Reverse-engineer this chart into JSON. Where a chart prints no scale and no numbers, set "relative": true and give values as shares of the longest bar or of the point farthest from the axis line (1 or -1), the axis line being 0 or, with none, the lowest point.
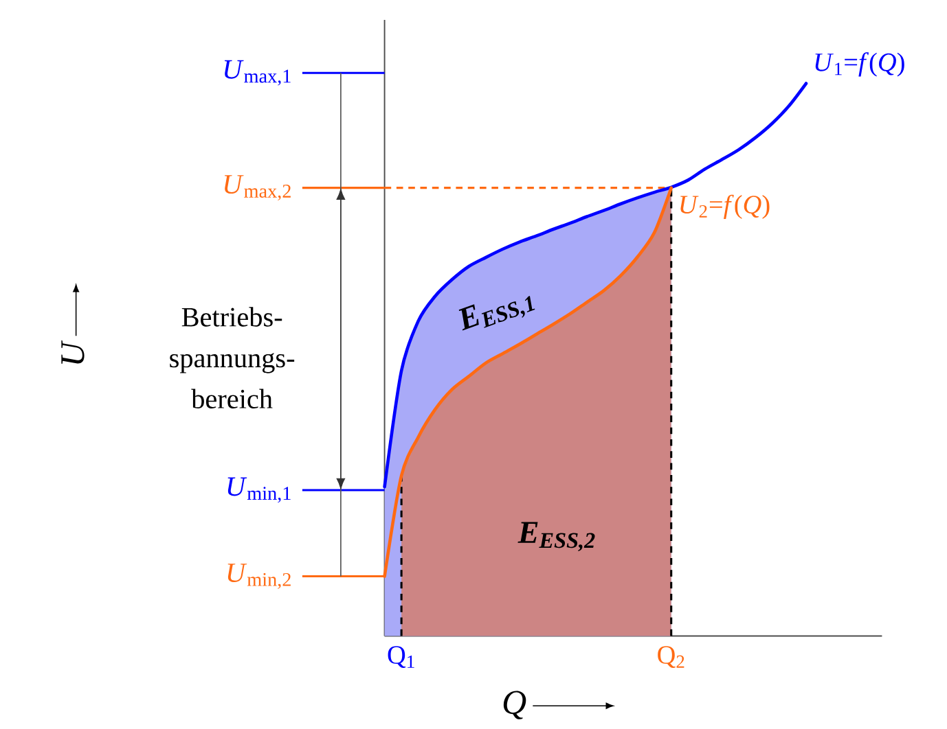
{
  "chart_data": {
    "type": "line",
    "relative": true,
    "xlabel": "Q",
    "categories": [
      null,
      "Q$_{1}$",
      null,
      null,
      null,
      null,
      null,
      null,
      null,
      null,
      null,
      null,
      null,
      null,
      null,
      null,
      null,
      "Q$_{2}$",
      null,
      null,
      null,
      null,
      null,
      null,
      null,
      null
    ],
    "series": [
      {
        "type": "area",
        "color": "#a9aaf8",
        "values": [
          0.27,
          0.48,
          0.57,
          0.615,
          0.645,
          0.669,
          0.685,
          0.7,
          0.713,
          0.724,
          0.736,
          0.747,
          0.759,
          0.77,
          0.782,
          0.793,
          0.803,
          0.812,
          null,
          null,
          null,
          null,
          null,
          null,
          null,
          null
        ]
      },
      {
        "type": "area",
        "color": "#cd8584",
        "values": [
          null,
          0.29,
          0.36,
          0.41,
          0.446,
          0.47,
          0.494,
          0.511,
          0.528,
          0.546,
          0.564,
          0.583,
          0.604,
          0.625,
          0.652,
          0.686,
          0.73,
          0.811,
          null,
          null,
          null,
          null,
          null,
          null,
          null,
          null
        ]
      },
      {
        "name": "*U*$_{1}$=*f*(*Q*)",
        "color": "#0000ff",
        "values": [
          0.27,
          0.48,
          0.57,
          0.615,
          0.645,
          0.669,
          0.685,
          0.7,
          0.713,
          0.724,
          0.736,
          0.747,
          0.759,
          0.77,
          0.782,
          0.793,
          0.803,
          0.812,
          0.825,
          0.845,
          0.862,
          0.88,
          0.902,
          0.928,
          0.96,
          1.0
        ]
      },
      {
        "name": "*U*$_{2}$=*f*(*Q*)",
        "color": "#ff6a13",
        "values": [
          0.108,
          0.29,
          0.36,
          0.41,
          0.446,
          0.47,
          0.494,
          0.511,
          0.528,
          0.546,
          0.564,
          0.583,
          0.604,
          0.625,
          0.652,
          0.686,
          0.73,
          0.811,
          null,
          null,
          null,
          null,
          null,
          null,
          null,
          null
        ]
      }
    ],
    "ref_lines": [
      {
        "axis": "y",
        "value": 1.019,
        "label": "*U*$_{max,1}$",
        "color": "#0000ff"
      },
      {
        "axis": "y",
        "value": 0.811,
        "label": "*U*$_{max,2}$",
        "color": "#ff6a13",
        "line_style": "dashed"
      },
      {
        "axis": "y",
        "value": 0.264,
        "label": "*U*$_{min,1}$",
        "color": "#0000ff"
      },
      {
        "axis": "y",
        "value": 0.108,
        "label": "*U*$_{min,2}$",
        "color": "#ff6a13"
      },
      {
        "axis": "x",
        "value": "Q$_{1}$",
        "color": "#000000",
        "line_style": "dashed"
      },
      {
        "axis": "x",
        "value": "Q$_{2}$",
        "color": "#000000",
        "line_style": "dashed"
      }
    ],
    "annotations": [
      "Betriebs-spannungs-bereich",
      "E$_{ESS,1}$",
      "E$_{ESS,2}$",
      "U"
    ]
  }
}
